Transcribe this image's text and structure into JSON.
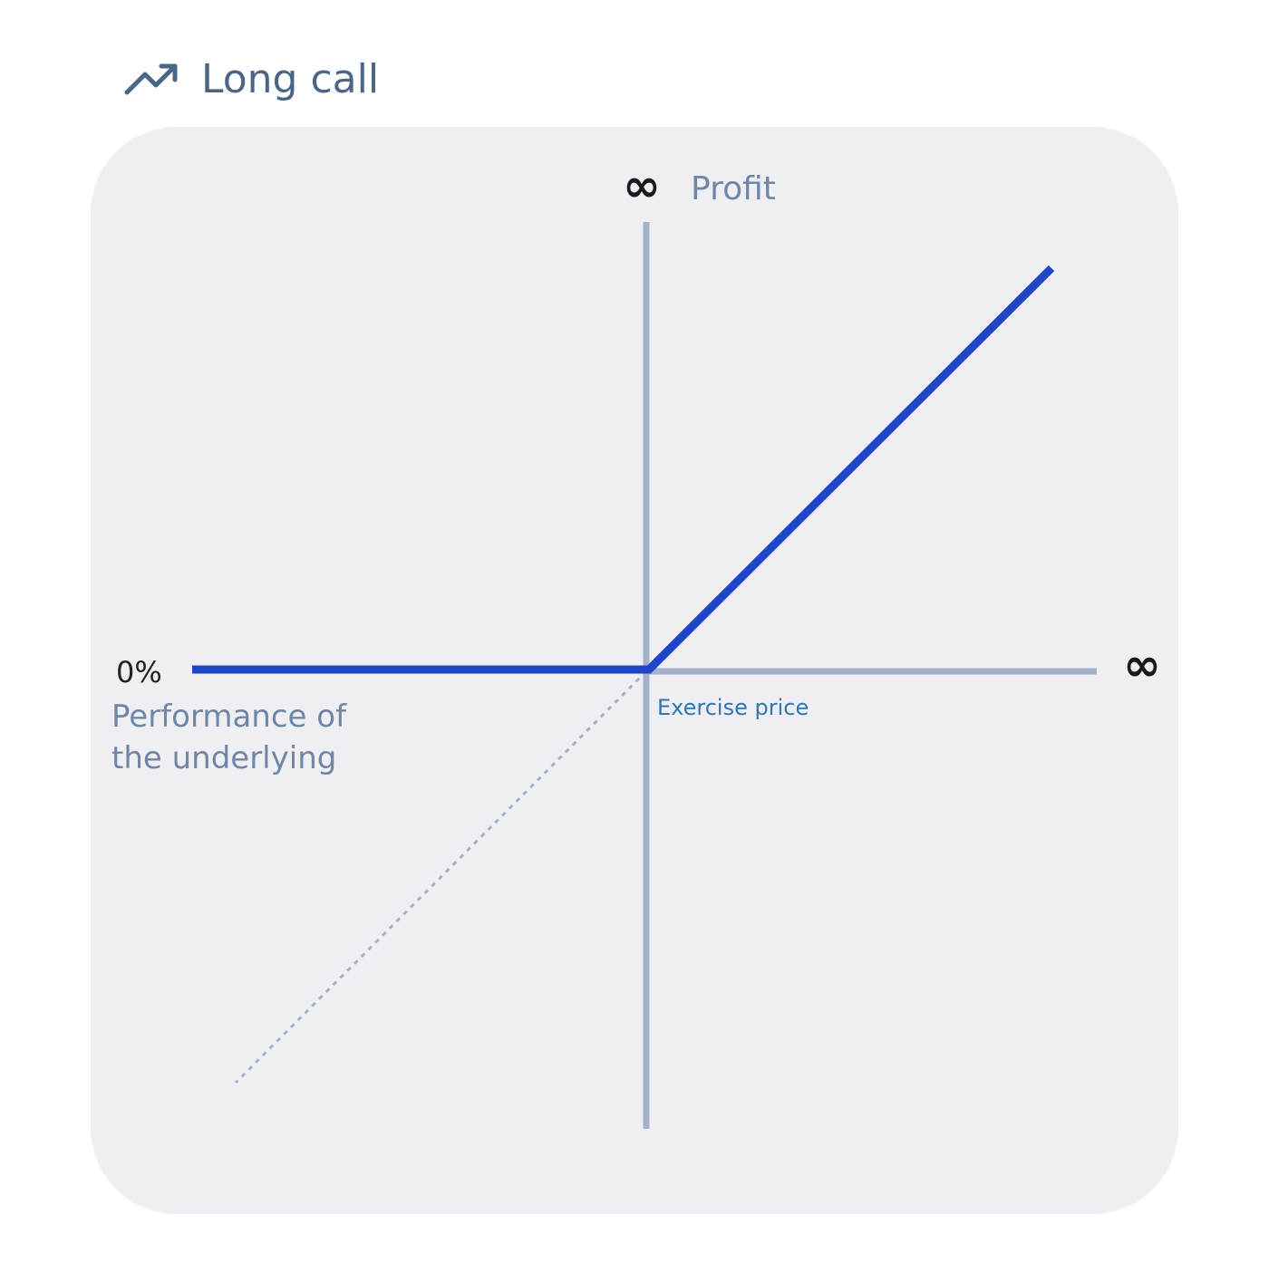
{
  "header": {
    "title": "Long call"
  },
  "diagram": {
    "y_axis_end": "∞",
    "y_axis_label": "Profit",
    "x_axis_end": "∞",
    "x_axis_start": "0%",
    "x_axis_label": [
      "Performance of",
      "the underlying"
    ],
    "exercise_label": "Exercise price"
  }
}
